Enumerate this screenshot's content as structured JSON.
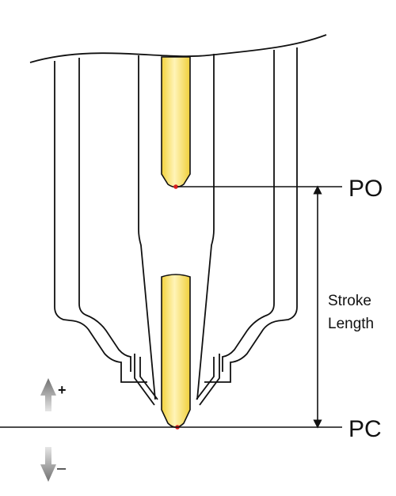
{
  "labels": {
    "open_position": "PO",
    "closed_position": "PC",
    "stroke_line1": "Stroke",
    "stroke_line2": "Length",
    "up_sign": "+",
    "down_sign": "–"
  },
  "colors": {
    "needle_fill": "#f6dc5a",
    "needle_highlight": "#fff6c2",
    "needle_outline": "#c9a72a",
    "tip_dot": "#d81e1e",
    "outline": "#111111",
    "arrow_grey": "#8a8a8a"
  },
  "icons": {
    "up_arrow": "up-arrow-icon",
    "down_arrow": "down-arrow-icon"
  }
}
